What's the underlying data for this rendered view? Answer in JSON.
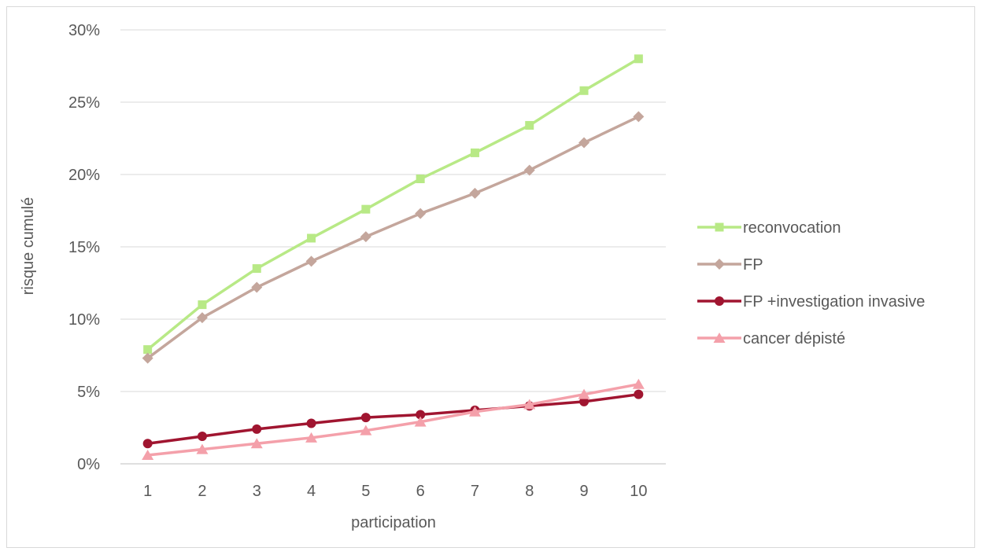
{
  "chart_data": {
    "type": "line",
    "title": "",
    "xlabel": "participation",
    "ylabel": "risque cumulé",
    "x": [
      1,
      2,
      3,
      4,
      5,
      6,
      7,
      8,
      9,
      10
    ],
    "ylim": [
      0,
      30
    ],
    "yticks": [
      "0%",
      "5%",
      "10%",
      "15%",
      "20%",
      "25%",
      "30%"
    ],
    "grid": true,
    "legend_position": "right",
    "series": [
      {
        "name": "reconvocation",
        "marker": "square",
        "color": "#b8e986",
        "values": [
          7.9,
          11.0,
          13.5,
          15.6,
          17.6,
          19.7,
          21.5,
          23.4,
          25.8,
          28.0
        ]
      },
      {
        "name": "FP",
        "marker": "diamond",
        "color": "#c4a69c",
        "values": [
          7.3,
          10.1,
          12.2,
          14.0,
          15.7,
          17.3,
          18.7,
          20.3,
          22.2,
          24.0
        ]
      },
      {
        "name": "FP +investigation invasive",
        "marker": "circle",
        "color": "#a01530",
        "values": [
          1.4,
          1.9,
          2.4,
          2.8,
          3.2,
          3.4,
          3.7,
          4.0,
          4.3,
          4.8
        ]
      },
      {
        "name": "cancer dépisté",
        "marker": "triangle",
        "color": "#f4a0aa",
        "values": [
          0.6,
          1.0,
          1.4,
          1.8,
          2.3,
          2.9,
          3.6,
          4.1,
          4.8,
          5.5
        ]
      }
    ]
  }
}
